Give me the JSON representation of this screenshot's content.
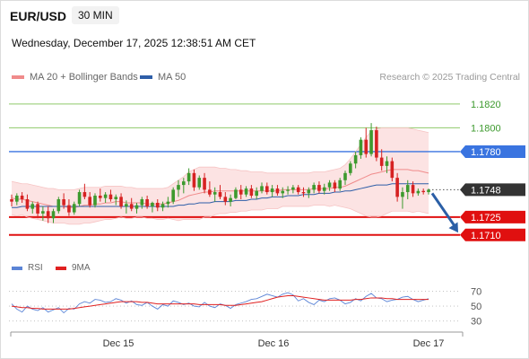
{
  "header": {
    "symbol": "EUR/USD",
    "timeframe": "30 MIN",
    "datetime": "Wednesday, December 17, 2025 12:38:51 AM CET",
    "credit": "Research © 2025 Trading Central"
  },
  "legend": {
    "bollinger": {
      "label": "MA 20 + Bollinger Bands",
      "color": "#f08b8b"
    },
    "ma50": {
      "label": "MA 50",
      "color": "#2e5ea8"
    }
  },
  "lower_legend": {
    "rsi": {
      "label": "RSI",
      "color": "#5b84d6"
    },
    "ma9": {
      "label": "9MA",
      "color": "#e02020"
    }
  },
  "colors": {
    "up": "#3d9a2e",
    "down": "#d62222",
    "target_green": "#8fc96a",
    "pivot_blue": "#3a74e0",
    "support_red": "#e01010",
    "arrow": "#2b5fa6",
    "band_fill": "#fbdede"
  },
  "chart_data": [
    {
      "type": "candlestick",
      "yrange": [
        1.1694,
        1.1832
      ],
      "x_ticks": [
        "Dec 15",
        "Dec 16",
        "Dec 17"
      ],
      "levels": [
        {
          "value": 1.182,
          "label": "1.1820",
          "style": "target"
        },
        {
          "value": 1.18,
          "label": "1.1800",
          "style": "target"
        },
        {
          "value": 1.178,
          "label": "1.1780",
          "style": "pivot"
        },
        {
          "value": 1.1748,
          "label": "1.1748",
          "style": "current"
        },
        {
          "value": 1.1725,
          "label": "1.1725",
          "style": "support"
        },
        {
          "value": 1.171,
          "label": "1.1710",
          "style": "support"
        }
      ],
      "forecast_arrow": {
        "from": 1.1745,
        "to": 1.1712
      },
      "candles": [
        [
          1.174,
          1.1744,
          1.1734,
          1.1738
        ],
        [
          1.1738,
          1.1745,
          1.1735,
          1.1743
        ],
        [
          1.1743,
          1.1746,
          1.1737,
          1.174
        ],
        [
          1.174,
          1.1744,
          1.173,
          1.1732
        ],
        [
          1.1732,
          1.1738,
          1.1728,
          1.1736
        ],
        [
          1.1736,
          1.1738,
          1.1724,
          1.1728
        ],
        [
          1.1728,
          1.1734,
          1.1722,
          1.173
        ],
        [
          1.173,
          1.1734,
          1.172,
          1.1724
        ],
        [
          1.1724,
          1.1732,
          1.172,
          1.173
        ],
        [
          1.173,
          1.1742,
          1.1728,
          1.174
        ],
        [
          1.174,
          1.1745,
          1.1732,
          1.1735
        ],
        [
          1.1735,
          1.174,
          1.1726,
          1.1729
        ],
        [
          1.1729,
          1.1738,
          1.1727,
          1.1736
        ],
        [
          1.1736,
          1.1748,
          1.1734,
          1.1746
        ],
        [
          1.1746,
          1.1753,
          1.174,
          1.1742
        ],
        [
          1.1742,
          1.1746,
          1.1733,
          1.1735
        ],
        [
          1.1735,
          1.1745,
          1.1733,
          1.1743
        ],
        [
          1.1743,
          1.1749,
          1.1738,
          1.1741
        ],
        [
          1.1741,
          1.1746,
          1.1737,
          1.1744
        ],
        [
          1.1744,
          1.1748,
          1.1738,
          1.174
        ],
        [
          1.174,
          1.1744,
          1.1735,
          1.1742
        ],
        [
          1.1742,
          1.1745,
          1.1732,
          1.1734
        ],
        [
          1.1734,
          1.1739,
          1.1728,
          1.1736
        ],
        [
          1.1736,
          1.1741,
          1.173,
          1.1732
        ],
        [
          1.1732,
          1.1737,
          1.1728,
          1.1735
        ],
        [
          1.1735,
          1.1742,
          1.1732,
          1.174
        ],
        [
          1.174,
          1.1743,
          1.1732,
          1.1734
        ],
        [
          1.1734,
          1.1738,
          1.1729,
          1.1737
        ],
        [
          1.1737,
          1.174,
          1.173,
          1.1733
        ],
        [
          1.1733,
          1.1738,
          1.173,
          1.1736
        ],
        [
          1.1736,
          1.1742,
          1.1733,
          1.1738
        ],
        [
          1.1738,
          1.175,
          1.1736,
          1.1748
        ],
        [
          1.1748,
          1.1756,
          1.1742,
          1.1752
        ],
        [
          1.1752,
          1.1758,
          1.1745,
          1.1755
        ],
        [
          1.1755,
          1.1766,
          1.1752,
          1.1762
        ],
        [
          1.1762,
          1.1765,
          1.1747,
          1.175
        ],
        [
          1.175,
          1.176,
          1.1748,
          1.1758
        ],
        [
          1.1758,
          1.1762,
          1.1745,
          1.1748
        ],
        [
          1.1748,
          1.1755,
          1.1742,
          1.1744
        ],
        [
          1.1744,
          1.175,
          1.1738,
          1.1746
        ],
        [
          1.1746,
          1.1752,
          1.174,
          1.1742
        ],
        [
          1.1742,
          1.1746,
          1.1735,
          1.1738
        ],
        [
          1.1738,
          1.1744,
          1.1734,
          1.1741
        ],
        [
          1.1741,
          1.175,
          1.174,
          1.1748
        ],
        [
          1.1748,
          1.1752,
          1.174,
          1.1744
        ],
        [
          1.1744,
          1.1751,
          1.1742,
          1.1749
        ],
        [
          1.1749,
          1.1752,
          1.1741,
          1.1743
        ],
        [
          1.1743,
          1.175,
          1.174,
          1.1747
        ],
        [
          1.1747,
          1.1754,
          1.1745,
          1.1751
        ],
        [
          1.1751,
          1.1754,
          1.1744,
          1.1746
        ],
        [
          1.1746,
          1.1752,
          1.1742,
          1.1749
        ],
        [
          1.1749,
          1.1752,
          1.1743,
          1.1745
        ],
        [
          1.1745,
          1.175,
          1.1741,
          1.1747
        ],
        [
          1.1747,
          1.1751,
          1.1744,
          1.1748
        ],
        [
          1.1748,
          1.1752,
          1.1745,
          1.175
        ],
        [
          1.175,
          1.1752,
          1.1744,
          1.1746
        ],
        [
          1.1746,
          1.175,
          1.1742,
          1.1745
        ],
        [
          1.1745,
          1.175,
          1.1741,
          1.1748
        ],
        [
          1.1748,
          1.1754,
          1.1745,
          1.1752
        ],
        [
          1.1752,
          1.1755,
          1.1745,
          1.1747
        ],
        [
          1.1747,
          1.1753,
          1.1744,
          1.175
        ],
        [
          1.175,
          1.1756,
          1.1747,
          1.1754
        ],
        [
          1.1754,
          1.1756,
          1.1746,
          1.1749
        ],
        [
          1.1749,
          1.1758,
          1.1747,
          1.1756
        ],
        [
          1.1756,
          1.1764,
          1.1752,
          1.1762
        ],
        [
          1.1762,
          1.1772,
          1.176,
          1.177
        ],
        [
          1.177,
          1.178,
          1.1766,
          1.1777
        ],
        [
          1.1777,
          1.1792,
          1.1774,
          1.179
        ],
        [
          1.179,
          1.18,
          1.1775,
          1.1778
        ],
        [
          1.1778,
          1.1804,
          1.1776,
          1.1798
        ],
        [
          1.1798,
          1.1801,
          1.1772,
          1.1775
        ],
        [
          1.1775,
          1.1782,
          1.1764,
          1.1768
        ],
        [
          1.1768,
          1.1776,
          1.1762,
          1.1772
        ],
        [
          1.1772,
          1.1775,
          1.1755,
          1.1758
        ],
        [
          1.1758,
          1.1762,
          1.1738,
          1.1742
        ],
        [
          1.1742,
          1.175,
          1.1732,
          1.1746
        ],
        [
          1.1746,
          1.1756,
          1.174,
          1.1752
        ],
        [
          1.1752,
          1.1755,
          1.1742,
          1.1745
        ],
        [
          1.1745,
          1.1749,
          1.1743,
          1.1747
        ],
        [
          1.1747,
          1.1749,
          1.1744,
          1.1746
        ],
        [
          1.1746,
          1.1749,
          1.1744,
          1.1748
        ]
      ],
      "ma20": [
        1.1741,
        1.174,
        1.174,
        1.1739,
        1.1738,
        1.1737,
        1.1736,
        1.1735,
        1.1734,
        1.1734,
        1.1734,
        1.1733,
        1.1733,
        1.1734,
        1.1735,
        1.1735,
        1.1736,
        1.1736,
        1.1737,
        1.1737,
        1.1738,
        1.1738,
        1.1737,
        1.1737,
        1.1737,
        1.1737,
        1.1736,
        1.1736,
        1.1736,
        1.1736,
        1.1737,
        1.1738,
        1.1739,
        1.1741,
        1.1743,
        1.1744,
        1.1745,
        1.1746,
        1.1746,
        1.1747,
        1.1747,
        1.1747,
        1.1747,
        1.1747,
        1.1747,
        1.1747,
        1.1747,
        1.1747,
        1.1747,
        1.1747,
        1.1747,
        1.1747,
        1.1748,
        1.1748,
        1.1748,
        1.1748,
        1.1748,
        1.1748,
        1.1749,
        1.1749,
        1.1749,
        1.1749,
        1.175,
        1.175,
        1.1751,
        1.1753,
        1.1755,
        1.1757,
        1.1759,
        1.1761,
        1.1762,
        1.1763,
        1.1764,
        1.1765,
        1.1765,
        1.1765,
        1.1765,
        1.1764,
        1.1764,
        1.1763,
        1.1762
      ],
      "bb_upper": [
        1.1755,
        1.1754,
        1.1753,
        1.1753,
        1.1752,
        1.1751,
        1.175,
        1.1749,
        1.1749,
        1.1748,
        1.1748,
        1.1748,
        1.1748,
        1.1749,
        1.175,
        1.175,
        1.175,
        1.175,
        1.1751,
        1.1751,
        1.1751,
        1.1751,
        1.175,
        1.175,
        1.1749,
        1.1749,
        1.1749,
        1.1749,
        1.1749,
        1.1749,
        1.175,
        1.1753,
        1.1756,
        1.1759,
        1.1763,
        1.1765,
        1.1767,
        1.1767,
        1.1767,
        1.1767,
        1.1766,
        1.1766,
        1.1765,
        1.1765,
        1.1764,
        1.1764,
        1.1763,
        1.1763,
        1.1763,
        1.1762,
        1.1762,
        1.1762,
        1.1762,
        1.1762,
        1.1762,
        1.1762,
        1.1762,
        1.1762,
        1.1763,
        1.1763,
        1.1763,
        1.1764,
        1.1765,
        1.1766,
        1.1769,
        1.1774,
        1.178,
        1.1786,
        1.1792,
        1.1797,
        1.1799,
        1.18,
        1.18,
        1.18,
        1.18,
        1.18,
        1.18,
        1.1799,
        1.1798,
        1.1797,
        1.1796
      ],
      "bb_lower": [
        1.1727,
        1.1726,
        1.1727,
        1.1725,
        1.1724,
        1.1723,
        1.1722,
        1.1721,
        1.172,
        1.172,
        1.172,
        1.1719,
        1.1719,
        1.1719,
        1.172,
        1.172,
        1.1721,
        1.1722,
        1.1723,
        1.1723,
        1.1724,
        1.1725,
        1.1724,
        1.1724,
        1.1725,
        1.1725,
        1.1724,
        1.1724,
        1.1723,
        1.1723,
        1.1724,
        1.1723,
        1.1722,
        1.1723,
        1.1723,
        1.1723,
        1.1723,
        1.1725,
        1.1725,
        1.1727,
        1.1728,
        1.1728,
        1.1729,
        1.1729,
        1.173,
        1.173,
        1.1731,
        1.1731,
        1.1731,
        1.1732,
        1.1732,
        1.1732,
        1.1734,
        1.1734,
        1.1734,
        1.1734,
        1.1734,
        1.1734,
        1.1735,
        1.1735,
        1.1735,
        1.1734,
        1.1735,
        1.1734,
        1.1733,
        1.1732,
        1.173,
        1.1728,
        1.1726,
        1.1725,
        1.1725,
        1.1726,
        1.1728,
        1.173,
        1.173,
        1.173,
        1.173,
        1.1729,
        1.173,
        1.1729,
        1.1728
      ],
      "ma50": [
        1.1733,
        1.1733,
        1.1734,
        1.1734,
        1.1734,
        1.1734,
        1.1734,
        1.1734,
        1.1734,
        1.1734,
        1.1734,
        1.1734,
        1.1734,
        1.1734,
        1.1734,
        1.1734,
        1.1734,
        1.1734,
        1.1734,
        1.1734,
        1.1734,
        1.1734,
        1.1734,
        1.1734,
        1.1734,
        1.1734,
        1.1734,
        1.1734,
        1.1734,
        1.1734,
        1.1734,
        1.1734,
        1.1735,
        1.1735,
        1.1736,
        1.1736,
        1.1737,
        1.1737,
        1.1737,
        1.1738,
        1.1738,
        1.1738,
        1.1738,
        1.1739,
        1.1739,
        1.1739,
        1.174,
        1.174,
        1.1741,
        1.1741,
        1.1742,
        1.1742,
        1.1742,
        1.1743,
        1.1743,
        1.1743,
        1.1744,
        1.1744,
        1.1744,
        1.1745,
        1.1745,
        1.1745,
        1.1746,
        1.1746,
        1.1747,
        1.1747,
        1.1748,
        1.1749,
        1.175,
        1.1751,
        1.1752,
        1.1752,
        1.1752,
        1.1753,
        1.1753,
        1.1753,
        1.1753,
        1.1753,
        1.1753,
        1.1753,
        1.1753
      ]
    },
    {
      "type": "line",
      "yrange": [
        20,
        85
      ],
      "y_ticks": [
        {
          "value": 70,
          "label": "70"
        },
        {
          "value": 50,
          "label": "50"
        },
        {
          "value": 30,
          "label": "30"
        }
      ],
      "series": [
        {
          "name": "RSI",
          "values": [
            53,
            46,
            42,
            50,
            46,
            44,
            48,
            42,
            45,
            48,
            41,
            47,
            46,
            53,
            56,
            54,
            59,
            58,
            55,
            56,
            60,
            58,
            54,
            57,
            52,
            51,
            55,
            50,
            46,
            52,
            50,
            57,
            55,
            52,
            54,
            50,
            49,
            55,
            50,
            48,
            53,
            51,
            47,
            52,
            54,
            56,
            59,
            60,
            63,
            66,
            64,
            62,
            66,
            68,
            65,
            57,
            60,
            55,
            52,
            58,
            56,
            60,
            61,
            58,
            53,
            55,
            60,
            57,
            63,
            67,
            61,
            60,
            56,
            58,
            59,
            62,
            63,
            59,
            56,
            58,
            60
          ]
        },
        {
          "name": "9MA",
          "values": [
            50,
            49,
            48,
            48,
            47,
            47,
            46,
            46,
            46,
            46,
            46,
            46,
            47,
            48,
            49,
            50,
            51,
            52,
            53,
            54,
            55,
            56,
            56,
            56,
            56,
            55,
            55,
            54,
            53,
            53,
            53,
            53,
            53,
            53,
            53,
            53,
            52,
            52,
            52,
            52,
            52,
            51,
            51,
            51,
            52,
            53,
            54,
            55,
            56,
            58,
            60,
            62,
            63,
            64,
            64,
            63,
            62,
            61,
            60,
            59,
            58,
            58,
            58,
            58,
            58,
            58,
            59,
            59,
            60,
            61,
            61,
            61,
            60,
            60,
            59,
            59,
            59,
            59,
            59,
            59,
            59
          ]
        }
      ]
    }
  ]
}
